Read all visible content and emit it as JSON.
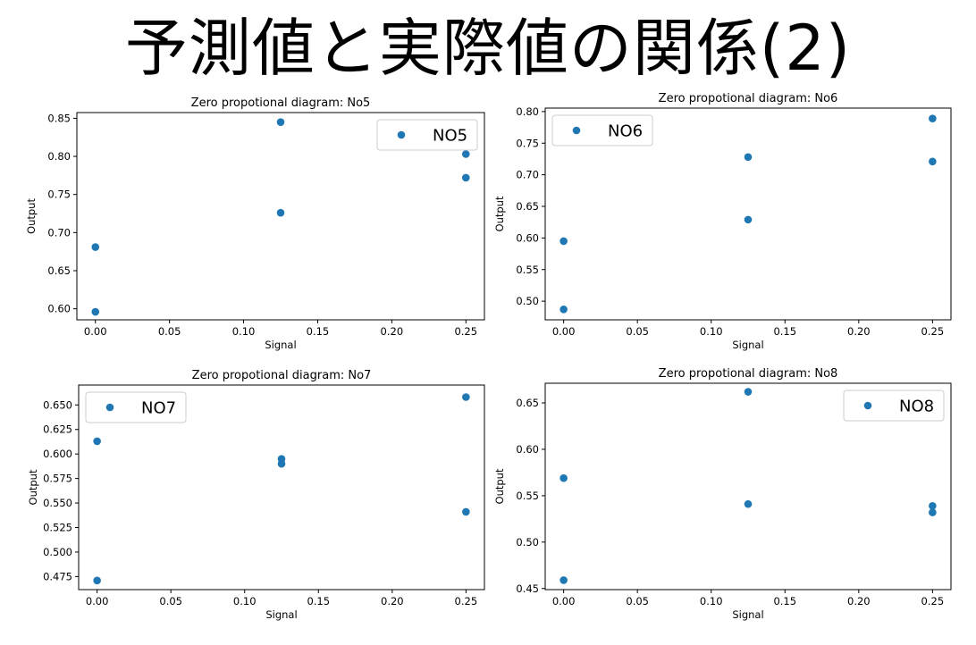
{
  "slide": {
    "title": "予測値と実際値の関係(2)"
  },
  "chart_data": [
    {
      "type": "scatter",
      "title": "Zero propotional diagram: No5",
      "xlabel": "Signal",
      "ylabel": "Output",
      "xlim": [
        -0.0125,
        0.2625
      ],
      "ylim": [
        0.5855,
        0.8575
      ],
      "xticks": [
        "0.00",
        "0.05",
        "0.10",
        "0.15",
        "0.20",
        "0.25"
      ],
      "yticks": [
        "0.60",
        "0.65",
        "0.70",
        "0.75",
        "0.80",
        "0.85"
      ],
      "legend_position": "upper right",
      "color": "#1f77b4",
      "series": [
        {
          "name": "NO5",
          "x": [
            0.0,
            0.0,
            0.125,
            0.125,
            0.25,
            0.25
          ],
          "y": [
            0.681,
            0.596,
            0.845,
            0.726,
            0.803,
            0.772
          ]
        }
      ]
    },
    {
      "type": "scatter",
      "title": "Zero propotional diagram: No6",
      "xlabel": "Signal",
      "ylabel": "Output",
      "xlim": [
        -0.0125,
        0.2625
      ],
      "ylim": [
        0.4705,
        0.8055
      ],
      "xticks": [
        "0.00",
        "0.05",
        "0.10",
        "0.15",
        "0.20",
        "0.25"
      ],
      "yticks": [
        "0.50",
        "0.55",
        "0.60",
        "0.65",
        "0.70",
        "0.75",
        "0.80"
      ],
      "legend_position": "upper left",
      "color": "#1f77b4",
      "series": [
        {
          "name": "NO6",
          "x": [
            0.0,
            0.0,
            0.125,
            0.125,
            0.25,
            0.25
          ],
          "y": [
            0.595,
            0.487,
            0.728,
            0.629,
            0.789,
            0.721
          ]
        }
      ]
    },
    {
      "type": "scatter",
      "title": "Zero propotional diagram: No7",
      "xlabel": "Signal",
      "ylabel": "Output",
      "xlim": [
        -0.0125,
        0.2625
      ],
      "ylim": [
        0.4617,
        0.6703
      ],
      "xticks": [
        "0.00",
        "0.05",
        "0.10",
        "0.15",
        "0.20",
        "0.25"
      ],
      "yticks": [
        "0.475",
        "0.500",
        "0.525",
        "0.550",
        "0.575",
        "0.600",
        "0.625",
        "0.650"
      ],
      "legend_position": "upper left",
      "color": "#1f77b4",
      "series": [
        {
          "name": "NO7",
          "x": [
            0.0,
            0.0,
            0.125,
            0.125,
            0.25,
            0.25
          ],
          "y": [
            0.613,
            0.471,
            0.595,
            0.59,
            0.658,
            0.541
          ]
        }
      ]
    },
    {
      "type": "scatter",
      "title": "Zero propotional diagram: No8",
      "xlabel": "Signal",
      "ylabel": "Output",
      "xlim": [
        -0.0125,
        0.2625
      ],
      "ylim": [
        0.4488,
        0.6712
      ],
      "xticks": [
        "0.00",
        "0.05",
        "0.10",
        "0.15",
        "0.20",
        "0.25"
      ],
      "yticks": [
        "0.45",
        "0.50",
        "0.55",
        "0.60",
        "0.65"
      ],
      "legend_position": "upper right",
      "color": "#1f77b4",
      "series": [
        {
          "name": "NO8",
          "x": [
            0.0,
            0.0,
            0.125,
            0.125,
            0.25,
            0.25
          ],
          "y": [
            0.569,
            0.459,
            0.662,
            0.541,
            0.539,
            0.532
          ]
        }
      ]
    }
  ]
}
